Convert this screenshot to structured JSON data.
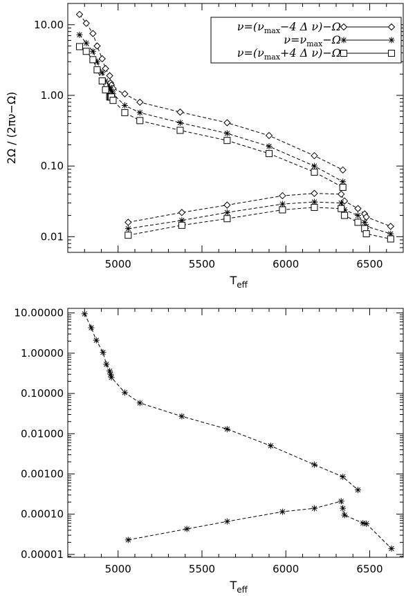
{
  "chart_data": [
    {
      "type": "line",
      "xlabel": "T_eff",
      "xlabel_main": "T",
      "xlabel_sub": "eff",
      "ylabel": "2Ω / (2πν−Ω)",
      "xlim": [
        4700,
        6700
      ],
      "ylim": [
        0.006,
        20
      ],
      "yscale": "log",
      "x_ticks": [
        5000,
        5500,
        6000,
        6500
      ],
      "x_tick_labels": [
        "5000",
        "5500",
        "6000",
        "6500"
      ],
      "y_ticks": [
        0.01,
        0.1,
        1,
        10
      ],
      "y_tick_labels": [
        "0.01",
        "0.10",
        "1.00",
        "10.00"
      ],
      "legend_position": "top-right",
      "series": [
        {
          "name": "ν=(νmax−4 Δ ν)−Ω",
          "legend_parts": [
            "ν=(ν",
            "max",
            "−4  Δ  ν)−Ω"
          ],
          "marker": "diamond",
          "upper": {
            "x": [
              4770,
              4810,
              4850,
              4875,
              4905,
              4925,
              4950,
              4955,
              4960,
              4970,
              5040,
              5130,
              5370,
              5650,
              5900,
              6170,
              6340
            ],
            "y": [
              14.0,
              10.5,
              7.5,
              5.0,
              3.3,
              2.4,
              1.9,
              1.5,
              1.4,
              1.25,
              1.05,
              0.8,
              0.58,
              0.41,
              0.27,
              0.14,
              0.088
            ]
          },
          "lower": {
            "x": [
              5060,
              5380,
              5650,
              5980,
              6170,
              6330,
              6350,
              6430,
              6470,
              6480,
              6625
            ],
            "y": [
              0.016,
              0.022,
              0.028,
              0.038,
              0.041,
              0.04,
              0.032,
              0.025,
              0.021,
              0.019,
              0.014
            ]
          }
        },
        {
          "name": "ν=νmax−Ω",
          "legend_parts": [
            "ν=ν",
            "max",
            "−Ω"
          ],
          "marker": "asterisk",
          "upper": {
            "x": [
              4770,
              4810,
              4850,
              4875,
              4905,
              4925,
              4950,
              4955,
              4960,
              4970,
              5040,
              5130,
              5370,
              5650,
              5900,
              6170,
              6340
            ],
            "y": [
              7.2,
              5.5,
              4.2,
              3.0,
              2.1,
              1.6,
              1.3,
              1.2,
              1.15,
              1.05,
              0.72,
              0.57,
              0.41,
              0.29,
              0.19,
              0.1,
              0.06
            ]
          },
          "lower": {
            "x": [
              5060,
              5380,
              5650,
              5980,
              6170,
              6330,
              6350,
              6430,
              6470,
              6480,
              6625
            ],
            "y": [
              0.013,
              0.017,
              0.022,
              0.029,
              0.031,
              0.03,
              0.024,
              0.02,
              0.016,
              0.014,
              0.011
            ]
          }
        },
        {
          "name": "ν=(νmax+4 Δ ν)−Ω",
          "legend_parts": [
            "ν=(ν",
            "max",
            "+4  Δ  ν)−Ω"
          ],
          "marker": "square",
          "upper": {
            "x": [
              4770,
              4810,
              4850,
              4875,
              4905,
              4925,
              4950,
              4955,
              4960,
              4970,
              5040,
              5130,
              5370,
              5650,
              5900,
              6170,
              6340
            ],
            "y": [
              4.9,
              4.2,
              3.2,
              2.3,
              1.6,
              1.2,
              0.95,
              0.95,
              0.95,
              0.85,
              0.57,
              0.44,
              0.32,
              0.23,
              0.15,
              0.082,
              0.05
            ]
          },
          "lower": {
            "x": [
              5060,
              5380,
              5650,
              5980,
              6170,
              6330,
              6350,
              6430,
              6470,
              6480,
              6625
            ],
            "y": [
              0.0105,
              0.0145,
              0.018,
              0.024,
              0.026,
              0.025,
              0.02,
              0.016,
              0.013,
              0.011,
              0.0093
            ]
          }
        }
      ]
    },
    {
      "type": "line",
      "xlabel": "T_eff",
      "xlabel_main": "T",
      "xlabel_sub": "eff",
      "ylabel": "",
      "xlim": [
        4700,
        6700
      ],
      "ylim": [
        8.5e-06,
        13
      ],
      "yscale": "log",
      "x_ticks": [
        5000,
        5500,
        6000,
        6500
      ],
      "x_tick_labels": [
        "5000",
        "5500",
        "6000",
        "6500"
      ],
      "y_ticks": [
        1e-05,
        0.0001,
        0.001,
        0.01,
        0.1,
        1,
        10
      ],
      "y_tick_labels": [
        "0.00001",
        "0.00010",
        "0.00100",
        "0.01000",
        "0.10000",
        "1.00000",
        "10.00000"
      ],
      "series": [
        {
          "marker": "asterisk",
          "upper": {
            "x": [
              4800,
              4840,
              4870,
              4910,
              4930,
              4950,
              4955,
              4960,
              5040,
              5130,
              5380,
              5650,
              5910,
              6170,
              6340,
              6430
            ],
            "y": [
              9.5,
              4.3,
              2.1,
              1.05,
              0.53,
              0.36,
              0.3,
              0.25,
              0.105,
              0.058,
              0.027,
              0.013,
              0.005,
              0.0017,
              0.00085,
              0.0004
            ]
          },
          "lower": {
            "x": [
              5060,
              5410,
              5650,
              5980,
              6170,
              6330,
              6340,
              6350,
              6460,
              6480,
              6630
            ],
            "y": [
              2.3e-05,
              4.3e-05,
              6.6e-05,
              0.000115,
              0.00014,
              0.00021,
              0.00014,
              9.5e-05,
              6e-05,
              5.8e-05,
              1.4e-05
            ]
          }
        }
      ]
    }
  ]
}
